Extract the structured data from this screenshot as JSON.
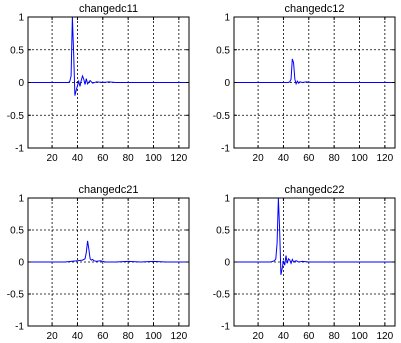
{
  "chart_data": [
    {
      "type": "line",
      "title": "changedc11",
      "xlim": [
        1,
        128
      ],
      "ylim": [
        -1,
        1
      ],
      "xticks": [
        20,
        40,
        60,
        80,
        100,
        120
      ],
      "xtick_labels": [
        "20",
        "40",
        "60",
        "80",
        "100",
        "120"
      ],
      "yticks": [
        1,
        0.5,
        0,
        -0.5,
        -1
      ],
      "ytick_labels": [
        "1",
        "0.5",
        "0",
        "-0.5",
        "-1"
      ],
      "grid": true,
      "line_color": "#0000ff",
      "series": [
        {
          "x": [
            1,
            10,
            20,
            30,
            33,
            34,
            35,
            36,
            37,
            38,
            39,
            40,
            41,
            42,
            43,
            44,
            45,
            46,
            47,
            48,
            50,
            52,
            55,
            60,
            65,
            70,
            80,
            90,
            100,
            110,
            120,
            128
          ],
          "y": [
            0,
            0,
            0,
            0,
            0,
            0.02,
            0.1,
            1.0,
            0.45,
            -0.2,
            -0.12,
            -0.05,
            0.02,
            -0.06,
            0.03,
            0.1,
            0.05,
            -0.03,
            0.06,
            -0.02,
            0.03,
            -0.01,
            0.01,
            0,
            0.01,
            0,
            0,
            0,
            0,
            0,
            0,
            0
          ]
        }
      ]
    },
    {
      "type": "line",
      "title": "changedc12",
      "xlim": [
        1,
        128
      ],
      "ylim": [
        -1,
        1
      ],
      "xticks": [
        20,
        40,
        60,
        80,
        100,
        120
      ],
      "xtick_labels": [
        "20",
        "40",
        "60",
        "80",
        "100",
        "120"
      ],
      "yticks": [
        1,
        0.5,
        0,
        -0.5,
        -1
      ],
      "ytick_labels": [
        "1",
        "0.5",
        "0",
        "-0.5",
        "-1"
      ],
      "grid": true,
      "line_color": "#0000ff",
      "series": [
        {
          "x": [
            1,
            10,
            20,
            30,
            40,
            44,
            45,
            46,
            47,
            48,
            49,
            50,
            51,
            52,
            53,
            55,
            58,
            62,
            70,
            80,
            90,
            100,
            110,
            120,
            128
          ],
          "y": [
            0,
            0,
            0,
            0,
            0,
            0,
            0.01,
            0.05,
            0.36,
            0.3,
            0.05,
            -0.02,
            0.02,
            -0.01,
            0.01,
            0,
            0.01,
            0,
            0,
            0,
            0,
            0,
            0,
            0,
            0
          ]
        }
      ]
    },
    {
      "type": "line",
      "title": "changedc21",
      "xlim": [
        1,
        128
      ],
      "ylim": [
        -1,
        1
      ],
      "xticks": [
        20,
        40,
        60,
        80,
        100,
        120
      ],
      "xtick_labels": [
        "20",
        "40",
        "60",
        "80",
        "100",
        "120"
      ],
      "yticks": [
        1,
        0.5,
        0,
        -0.5,
        -1
      ],
      "ytick_labels": [
        "1",
        "0.5",
        "0",
        "-0.5",
        "-1"
      ],
      "grid": true,
      "line_color": "#0000ff",
      "series": [
        {
          "x": [
            1,
            10,
            20,
            30,
            35,
            40,
            44,
            46,
            47,
            48,
            49,
            50,
            51,
            52,
            53,
            55,
            58,
            62,
            70,
            80,
            90,
            100,
            110,
            120,
            128
          ],
          "y": [
            0,
            0,
            0,
            0,
            0.01,
            0.02,
            0.03,
            0.05,
            0.15,
            0.33,
            0.2,
            0.05,
            0.03,
            0.04,
            0.02,
            0.01,
            0.02,
            0,
            0,
            0.01,
            0,
            0.01,
            0,
            0,
            0
          ]
        }
      ]
    },
    {
      "type": "line",
      "title": "changedc22",
      "xlim": [
        1,
        128
      ],
      "ylim": [
        -1,
        1
      ],
      "xticks": [
        20,
        40,
        60,
        80,
        100,
        120
      ],
      "xtick_labels": [
        "20",
        "40",
        "60",
        "80",
        "100",
        "120"
      ],
      "yticks": [
        1,
        0.5,
        0,
        -0.5,
        -1
      ],
      "ytick_labels": [
        "1",
        "0.5",
        "0",
        "-0.5",
        "-1"
      ],
      "grid": true,
      "line_color": "#0000ff",
      "series": [
        {
          "x": [
            1,
            10,
            20,
            30,
            33,
            34,
            35,
            36,
            37,
            38,
            39,
            40,
            41,
            42,
            43,
            44,
            45,
            46,
            47,
            48,
            50,
            52,
            55,
            60,
            70,
            80,
            90,
            100,
            110,
            120,
            128
          ],
          "y": [
            0,
            0,
            0,
            0,
            0.02,
            0.05,
            0.3,
            1.0,
            0.5,
            -0.2,
            -0.1,
            0.02,
            -0.05,
            0.1,
            -0.02,
            0.05,
            0.03,
            -0.02,
            0.04,
            0,
            0.02,
            0,
            0.01,
            0,
            0,
            0,
            0,
            0,
            0,
            0,
            0
          ]
        }
      ]
    }
  ]
}
